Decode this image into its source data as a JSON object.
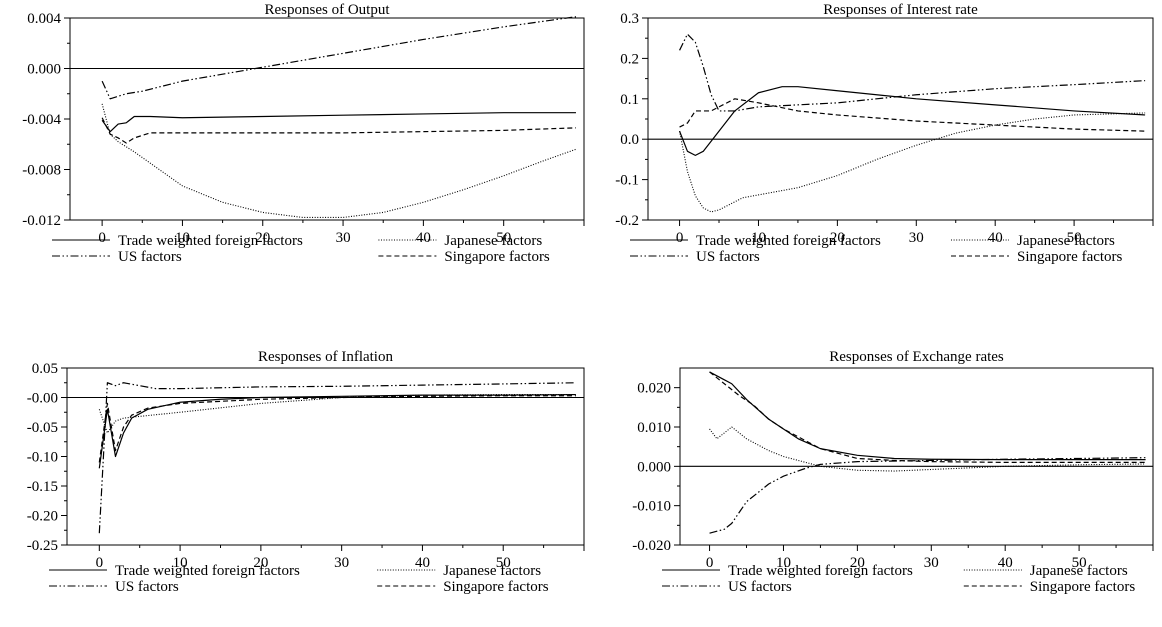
{
  "legend": {
    "trade": "Trade weighted foreign factors",
    "japan": "Japanese factors",
    "us": "US factors",
    "singapore": "Singapore factors"
  },
  "chart_data": [
    {
      "type": "line",
      "title": "Responses of Output",
      "xlim": [
        -4,
        60
      ],
      "xticks": [
        0,
        10,
        20,
        30,
        40,
        50
      ],
      "ylim": [
        -0.012,
        0.004
      ],
      "yticks": [
        -0.012,
        -0.008,
        -0.004,
        0.0,
        0.004
      ],
      "ytick_labels": [
        "-0.012",
        "-0.008",
        "-0.004",
        "0.000",
        "0.004"
      ],
      "series": [
        {
          "name": "Trade weighted foreign factors",
          "style": "solid",
          "points": [
            [
              0,
              -0.0041
            ],
            [
              1,
              -0.005
            ],
            [
              2,
              -0.0044
            ],
            [
              3,
              -0.0043
            ],
            [
              4,
              -0.0038
            ],
            [
              6,
              -0.0038
            ],
            [
              10,
              -0.0039
            ],
            [
              20,
              -0.0038
            ],
            [
              30,
              -0.0037
            ],
            [
              40,
              -0.0036
            ],
            [
              50,
              -0.0035
            ],
            [
              59,
              -0.0035
            ]
          ]
        },
        {
          "name": "Japanese factors",
          "style": "dotted",
          "points": [
            [
              0,
              -0.0028
            ],
            [
              1,
              -0.0052
            ],
            [
              2,
              -0.0058
            ],
            [
              4,
              -0.0066
            ],
            [
              10,
              -0.0093
            ],
            [
              15,
              -0.0106
            ],
            [
              20,
              -0.0114
            ],
            [
              25,
              -0.0118
            ],
            [
              30,
              -0.0118
            ],
            [
              35,
              -0.0114
            ],
            [
              40,
              -0.0106
            ],
            [
              45,
              -0.0096
            ],
            [
              50,
              -0.0085
            ],
            [
              55,
              -0.0073
            ],
            [
              59,
              -0.0064
            ]
          ]
        },
        {
          "name": "US factors",
          "style": "dashdot",
          "points": [
            [
              0,
              -0.001
            ],
            [
              1,
              -0.0024
            ],
            [
              2,
              -0.0022
            ],
            [
              3,
              -0.002
            ],
            [
              5,
              -0.0018
            ],
            [
              10,
              -0.001
            ],
            [
              20,
              0.0001
            ],
            [
              30,
              0.0012
            ],
            [
              40,
              0.0023
            ],
            [
              50,
              0.0033
            ],
            [
              59,
              0.0041
            ]
          ]
        },
        {
          "name": "Singapore factors",
          "style": "dashed",
          "points": [
            [
              0,
              -0.0039
            ],
            [
              1,
              -0.0052
            ],
            [
              2,
              -0.0055
            ],
            [
              3,
              -0.0059
            ],
            [
              4,
              -0.0055
            ],
            [
              6,
              -0.0051
            ],
            [
              10,
              -0.0051
            ],
            [
              20,
              -0.0051
            ],
            [
              30,
              -0.0051
            ],
            [
              40,
              -0.005
            ],
            [
              50,
              -0.0049
            ],
            [
              59,
              -0.0047
            ]
          ]
        }
      ]
    },
    {
      "type": "line",
      "title": "Responses of Interest rate",
      "xlim": [
        -4,
        60
      ],
      "xticks": [
        0,
        10,
        20,
        30,
        40,
        50
      ],
      "ylim": [
        -0.2,
        0.3
      ],
      "yticks": [
        -0.2,
        -0.1,
        0.0,
        0.1,
        0.2,
        0.3
      ],
      "ytick_labels": [
        "-0.2",
        "-0.1",
        "0.0",
        "0.1",
        "0.2",
        "0.3"
      ],
      "series": [
        {
          "name": "Trade weighted foreign factors",
          "style": "solid",
          "points": [
            [
              0,
              0.02
            ],
            [
              1,
              -0.03
            ],
            [
              2,
              -0.04
            ],
            [
              3,
              -0.03
            ],
            [
              5,
              0.02
            ],
            [
              7,
              0.07
            ],
            [
              10,
              0.115
            ],
            [
              13,
              0.13
            ],
            [
              15,
              0.13
            ],
            [
              20,
              0.12
            ],
            [
              30,
              0.1
            ],
            [
              40,
              0.085
            ],
            [
              50,
              0.07
            ],
            [
              59,
              0.06
            ]
          ]
        },
        {
          "name": "Japanese factors",
          "style": "dotted",
          "points": [
            [
              0,
              0.02
            ],
            [
              1,
              -0.08
            ],
            [
              2,
              -0.14
            ],
            [
              3,
              -0.17
            ],
            [
              4,
              -0.18
            ],
            [
              5,
              -0.175
            ],
            [
              8,
              -0.145
            ],
            [
              15,
              -0.12
            ],
            [
              20,
              -0.09
            ],
            [
              25,
              -0.05
            ],
            [
              30,
              -0.015
            ],
            [
              35,
              0.015
            ],
            [
              40,
              0.035
            ],
            [
              45,
              0.05
            ],
            [
              50,
              0.06
            ],
            [
              59,
              0.065
            ]
          ]
        },
        {
          "name": "US factors",
          "style": "dashdot",
          "points": [
            [
              0,
              0.22
            ],
            [
              1,
              0.26
            ],
            [
              2,
              0.24
            ],
            [
              3,
              0.18
            ],
            [
              4,
              0.11
            ],
            [
              5,
              0.07
            ],
            [
              7,
              0.07
            ],
            [
              10,
              0.08
            ],
            [
              20,
              0.09
            ],
            [
              30,
              0.11
            ],
            [
              40,
              0.125
            ],
            [
              50,
              0.135
            ],
            [
              59,
              0.145
            ]
          ]
        },
        {
          "name": "Singapore factors",
          "style": "dashed",
          "points": [
            [
              0,
              0.03
            ],
            [
              1,
              0.04
            ],
            [
              2,
              0.07
            ],
            [
              4,
              0.07
            ],
            [
              7,
              0.1
            ],
            [
              10,
              0.09
            ],
            [
              15,
              0.07
            ],
            [
              20,
              0.06
            ],
            [
              30,
              0.045
            ],
            [
              40,
              0.035
            ],
            [
              50,
              0.025
            ],
            [
              59,
              0.02
            ]
          ]
        }
      ]
    },
    {
      "type": "line",
      "title": "Responses of Inflation",
      "xlim": [
        -4,
        60
      ],
      "xticks": [
        0,
        10,
        20,
        30,
        40,
        50
      ],
      "ylim": [
        -0.25,
        0.05
      ],
      "yticks": [
        -0.25,
        -0.2,
        -0.15,
        -0.1,
        -0.05,
        0.0,
        0.05
      ],
      "ytick_labels": [
        "-0.25",
        "-0.20",
        "-0.15",
        "-0.10",
        "-0.05",
        "-0.00",
        "0.05"
      ],
      "series": [
        {
          "name": "Trade weighted foreign factors",
          "style": "solid",
          "points": [
            [
              0,
              -0.12
            ],
            [
              1,
              -0.02
            ],
            [
              2,
              -0.1
            ],
            [
              3,
              -0.06
            ],
            [
              4,
              -0.035
            ],
            [
              6,
              -0.02
            ],
            [
              10,
              -0.008
            ],
            [
              15,
              -0.003
            ],
            [
              20,
              0.0
            ],
            [
              30,
              0.002
            ],
            [
              40,
              0.004
            ],
            [
              50,
              0.004
            ],
            [
              59,
              0.005
            ]
          ]
        },
        {
          "name": "Japanese factors",
          "style": "dotted",
          "points": [
            [
              0,
              -0.02
            ],
            [
              1,
              -0.06
            ],
            [
              2,
              -0.04
            ],
            [
              3,
              -0.035
            ],
            [
              5,
              -0.032
            ],
            [
              10,
              -0.025
            ],
            [
              20,
              -0.01
            ],
            [
              30,
              0.0
            ],
            [
              40,
              0.004
            ],
            [
              50,
              0.005
            ],
            [
              59,
              0.005
            ]
          ]
        },
        {
          "name": "US factors",
          "style": "dashdot",
          "points": [
            [
              0,
              -0.23
            ],
            [
              1,
              0.025
            ],
            [
              2,
              0.02
            ],
            [
              3,
              0.025
            ],
            [
              5,
              0.02
            ],
            [
              7,
              0.015
            ],
            [
              10,
              0.015
            ],
            [
              20,
              0.018
            ],
            [
              30,
              0.019
            ],
            [
              40,
              0.021
            ],
            [
              50,
              0.023
            ],
            [
              59,
              0.025
            ]
          ]
        },
        {
          "name": "Singapore factors",
          "style": "dashed",
          "points": [
            [
              0,
              -0.11
            ],
            [
              1,
              -0.01
            ],
            [
              2,
              -0.09
            ],
            [
              3,
              -0.05
            ],
            [
              4,
              -0.03
            ],
            [
              6,
              -0.018
            ],
            [
              10,
              -0.01
            ],
            [
              20,
              -0.003
            ],
            [
              30,
              0.0
            ],
            [
              40,
              0.002
            ],
            [
              50,
              0.003
            ],
            [
              59,
              0.003
            ]
          ]
        }
      ]
    },
    {
      "type": "line",
      "title": "Responses of Exchange rates",
      "xlim": [
        -4,
        60
      ],
      "xticks": [
        0,
        10,
        20,
        30,
        40,
        50
      ],
      "ylim": [
        -0.02,
        0.025
      ],
      "yticks": [
        -0.02,
        -0.01,
        0.0,
        0.01,
        0.02
      ],
      "ytick_labels": [
        "-0.020",
        "-0.010",
        "0.000",
        "0.010",
        "0.020"
      ],
      "series": [
        {
          "name": "Trade weighted foreign factors",
          "style": "solid",
          "points": [
            [
              0,
              0.024
            ],
            [
              2,
              0.022
            ],
            [
              3,
              0.021
            ],
            [
              5,
              0.017
            ],
            [
              8,
              0.012
            ],
            [
              10,
              0.0095
            ],
            [
              12,
              0.007
            ],
            [
              15,
              0.0045
            ],
            [
              20,
              0.0028
            ],
            [
              25,
              0.002
            ],
            [
              30,
              0.0018
            ],
            [
              40,
              0.0017
            ],
            [
              50,
              0.0017
            ],
            [
              59,
              0.0017
            ]
          ]
        },
        {
          "name": "Japanese factors",
          "style": "dotted",
          "points": [
            [
              0,
              0.0095
            ],
            [
              1,
              0.007
            ],
            [
              2,
              0.0085
            ],
            [
              3,
              0.01
            ],
            [
              5,
              0.007
            ],
            [
              8,
              0.004
            ],
            [
              10,
              0.0025
            ],
            [
              15,
              0.0
            ],
            [
              20,
              -0.001
            ],
            [
              25,
              -0.0012
            ],
            [
              30,
              -0.0008
            ],
            [
              40,
              0.0
            ],
            [
              50,
              0.0004
            ],
            [
              59,
              0.0006
            ]
          ]
        },
        {
          "name": "US factors",
          "style": "dashdot",
          "points": [
            [
              0,
              -0.017
            ],
            [
              1,
              -0.0165
            ],
            [
              2,
              -0.016
            ],
            [
              3,
              -0.0145
            ],
            [
              5,
              -0.009
            ],
            [
              8,
              -0.0045
            ],
            [
              10,
              -0.0025
            ],
            [
              13,
              -0.0005
            ],
            [
              15,
              0.0005
            ],
            [
              20,
              0.0012
            ],
            [
              30,
              0.0015
            ],
            [
              40,
              0.0018
            ],
            [
              50,
              0.002
            ],
            [
              59,
              0.0022
            ]
          ]
        },
        {
          "name": "Singapore factors",
          "style": "dashed",
          "points": [
            [
              0,
              0.024
            ],
            [
              2,
              0.021
            ],
            [
              4,
              0.018
            ],
            [
              6,
              0.0155
            ],
            [
              8,
              0.012
            ],
            [
              10,
              0.0095
            ],
            [
              15,
              0.0045
            ],
            [
              20,
              0.002
            ],
            [
              25,
              0.0015
            ],
            [
              30,
              0.0012
            ],
            [
              40,
              0.001
            ],
            [
              50,
              0.001
            ],
            [
              59,
              0.001
            ]
          ]
        }
      ]
    }
  ]
}
